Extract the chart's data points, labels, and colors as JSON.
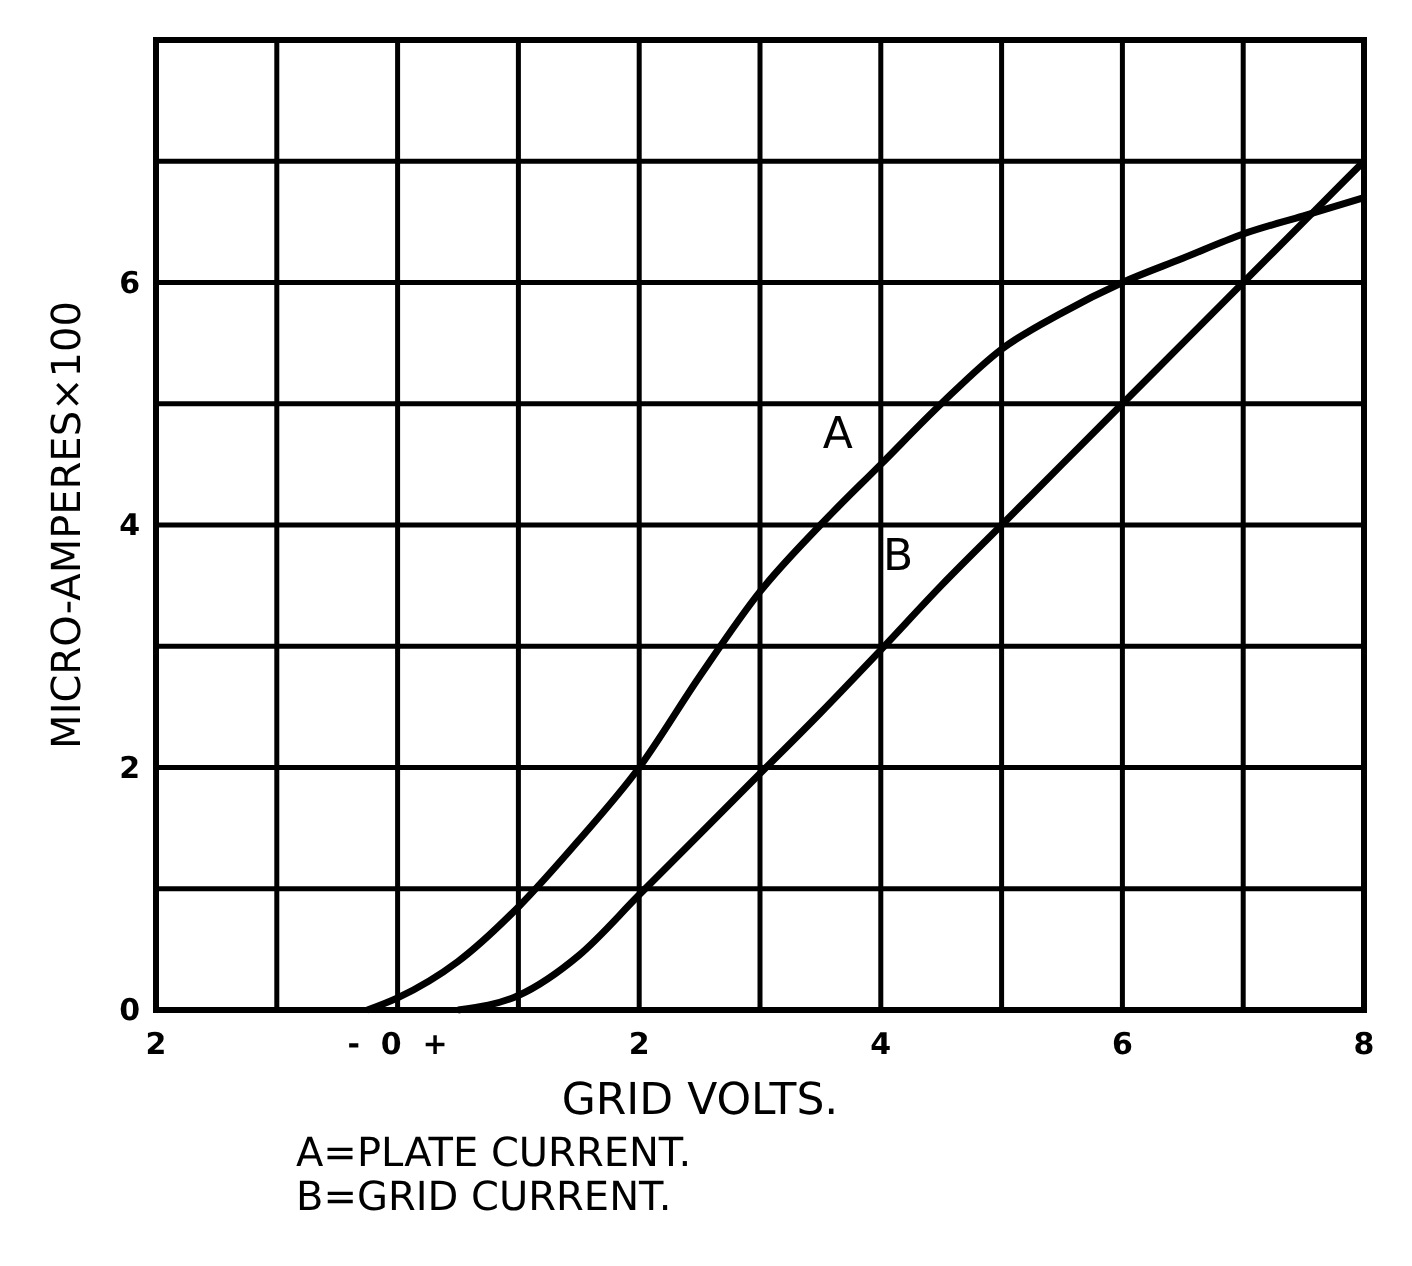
{
  "chart_data": {
    "type": "line",
    "xlabel": "GRID VOLTS.",
    "ylabel": "MICRO-AMPERES×100",
    "annotations": [
      "A=PLATE CURRENT.",
      "B=GRID CURRENT."
    ],
    "xlim": [
      -2,
      8
    ],
    "ylim": [
      0,
      8
    ],
    "xticks": [
      {
        "value": -2,
        "label": "2"
      },
      {
        "value": -1,
        "label": null
      },
      {
        "value": 0,
        "label": "-  0  +"
      },
      {
        "value": 1,
        "label": null
      },
      2,
      {
        "value": 3,
        "label": null
      },
      4,
      {
        "value": 5,
        "label": null
      },
      6,
      {
        "value": 7,
        "label": null
      },
      8
    ],
    "yticks": [
      0,
      {
        "value": 1,
        "label": null
      },
      2,
      {
        "value": 3,
        "label": null
      },
      4,
      {
        "value": 5,
        "label": null
      },
      6,
      {
        "value": 7,
        "label": null
      },
      {
        "value": 8,
        "label": null
      }
    ],
    "grid": true,
    "marker": "none",
    "line_style": "solid",
    "series": [
      {
        "name": "A",
        "color": "#000000",
        "x": [
          -0.25,
          0,
          0.5,
          1,
          1.5,
          2,
          2.5,
          3,
          3.5,
          4,
          4.5,
          5,
          5.5,
          6,
          6.5,
          7,
          7.5,
          8
        ],
        "values": [
          0,
          0.1,
          0.4,
          0.85,
          1.4,
          2,
          2.75,
          3.45,
          4.0,
          4.5,
          5.0,
          5.45,
          5.75,
          6.0,
          6.2,
          6.4,
          6.55,
          6.7
        ]
      },
      {
        "name": "B",
        "color": "#000000",
        "x": [
          0.5,
          1,
          1.5,
          2,
          2.5,
          3,
          3.5,
          4,
          4.5,
          5,
          5.5,
          6,
          6.5,
          7,
          7.5,
          8
        ],
        "values": [
          0,
          0.12,
          0.45,
          0.95,
          1.45,
          1.95,
          2.45,
          2.97,
          3.5,
          4.0,
          4.5,
          5.0,
          5.5,
          6.0,
          6.5,
          7.0
        ]
      }
    ]
  }
}
